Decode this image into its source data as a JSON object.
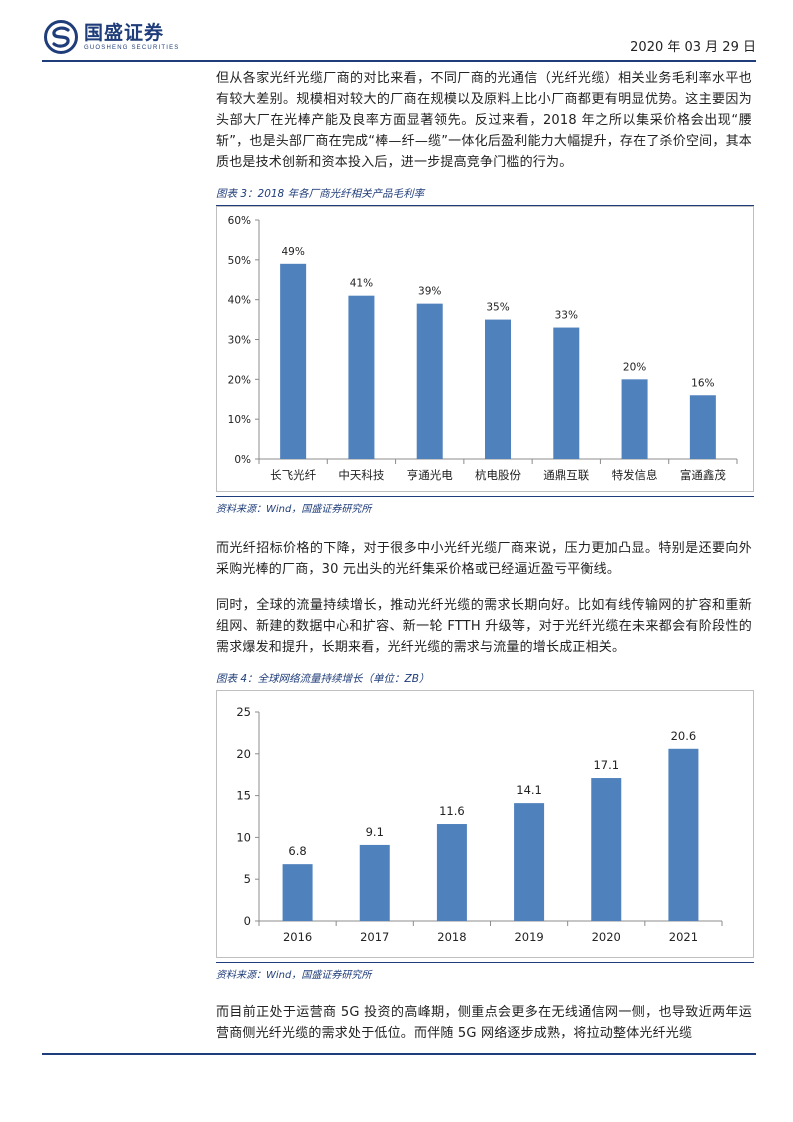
{
  "header": {
    "logo_cn": "国盛证券",
    "logo_en": "GUOSHENG SECURITIES",
    "date": "2020 年 03 月 29 日"
  },
  "paragraphs": {
    "p1": "但从各家光纤光缆厂商的对比来看，不同厂商的光通信（光纤光缆）相关业务毛利率水平也有较大差别。规模相对较大的厂商在规模以及原料上比小厂商都更有明显优势。这主要因为头部大厂在光棒产能及良率方面显著领先。反过来看，2018 年之所以集采价格会出现“腰斩”，也是头部厂商在完成“棒—纤—缆”一体化后盈利能力大幅提升，存在了杀价空间，其本质也是技术创新和资本投入后，进一步提高竞争门槛的行为。",
    "p2": "而光纤招标价格的下降，对于很多中小光纤光缆厂商来说，压力更加凸显。特别是还要向外采购光棒的厂商，30 元出头的光纤集采价格或已经逼近盈亏平衡线。",
    "p3": "同时，全球的流量持续增长，推动光纤光缆的需求长期向好。比如有线传输网的扩容和重新组网、新建的数据中心和扩容、新一轮 FTTH 升级等，对于光纤光缆在未来都会有阶段性的需求爆发和提升，长期来看，光纤光缆的需求与流量的增长成正相关。",
    "p4": "而目前正处于运营商 5G 投资的高峰期，侧重点会更多在无线通信网一侧，也导致近两年运营商侧光纤光缆的需求处于低位。而伴随 5G 网络逐步成熟，将拉动整体光纤光缆"
  },
  "figures": {
    "fig3_title": "图表 3：2018 年各厂商光纤相关产品毛利率",
    "fig3_source": "资料来源：Wind，国盛证券研究所",
    "fig4_title": "图表 4：全球网络流量持续增长（单位：ZB）",
    "fig4_source": "资料来源：Wind，国盛证券研究所"
  },
  "colors": {
    "bar": "#4f81bd",
    "brand": "#1f3d7a"
  },
  "chart_data": [
    {
      "type": "bar",
      "title": "",
      "categories": [
        "长飞光纤",
        "中天科技",
        "亨通光电",
        "杭电股份",
        "通鼎互联",
        "特发信息",
        "富通鑫茂"
      ],
      "values": [
        49,
        41,
        39,
        35,
        33,
        20,
        16
      ],
      "value_labels": [
        "49%",
        "41%",
        "39%",
        "35%",
        "33%",
        "20%",
        "16%"
      ],
      "yticks": [
        "0%",
        "10%",
        "20%",
        "30%",
        "40%",
        "50%",
        "60%"
      ],
      "ylim": [
        0,
        60
      ],
      "grid": false,
      "legend": "none"
    },
    {
      "type": "bar",
      "title": "",
      "categories": [
        "2016",
        "2017",
        "2018",
        "2019",
        "2020",
        "2021"
      ],
      "values": [
        6.8,
        9.1,
        11.6,
        14.1,
        17.1,
        20.6
      ],
      "value_labels": [
        "6.8",
        "9.1",
        "11.6",
        "14.1",
        "17.1",
        "20.6"
      ],
      "yticks": [
        "0",
        "5",
        "10",
        "15",
        "20",
        "25"
      ],
      "ylim": [
        0,
        25
      ],
      "grid": false,
      "legend": "none"
    }
  ]
}
